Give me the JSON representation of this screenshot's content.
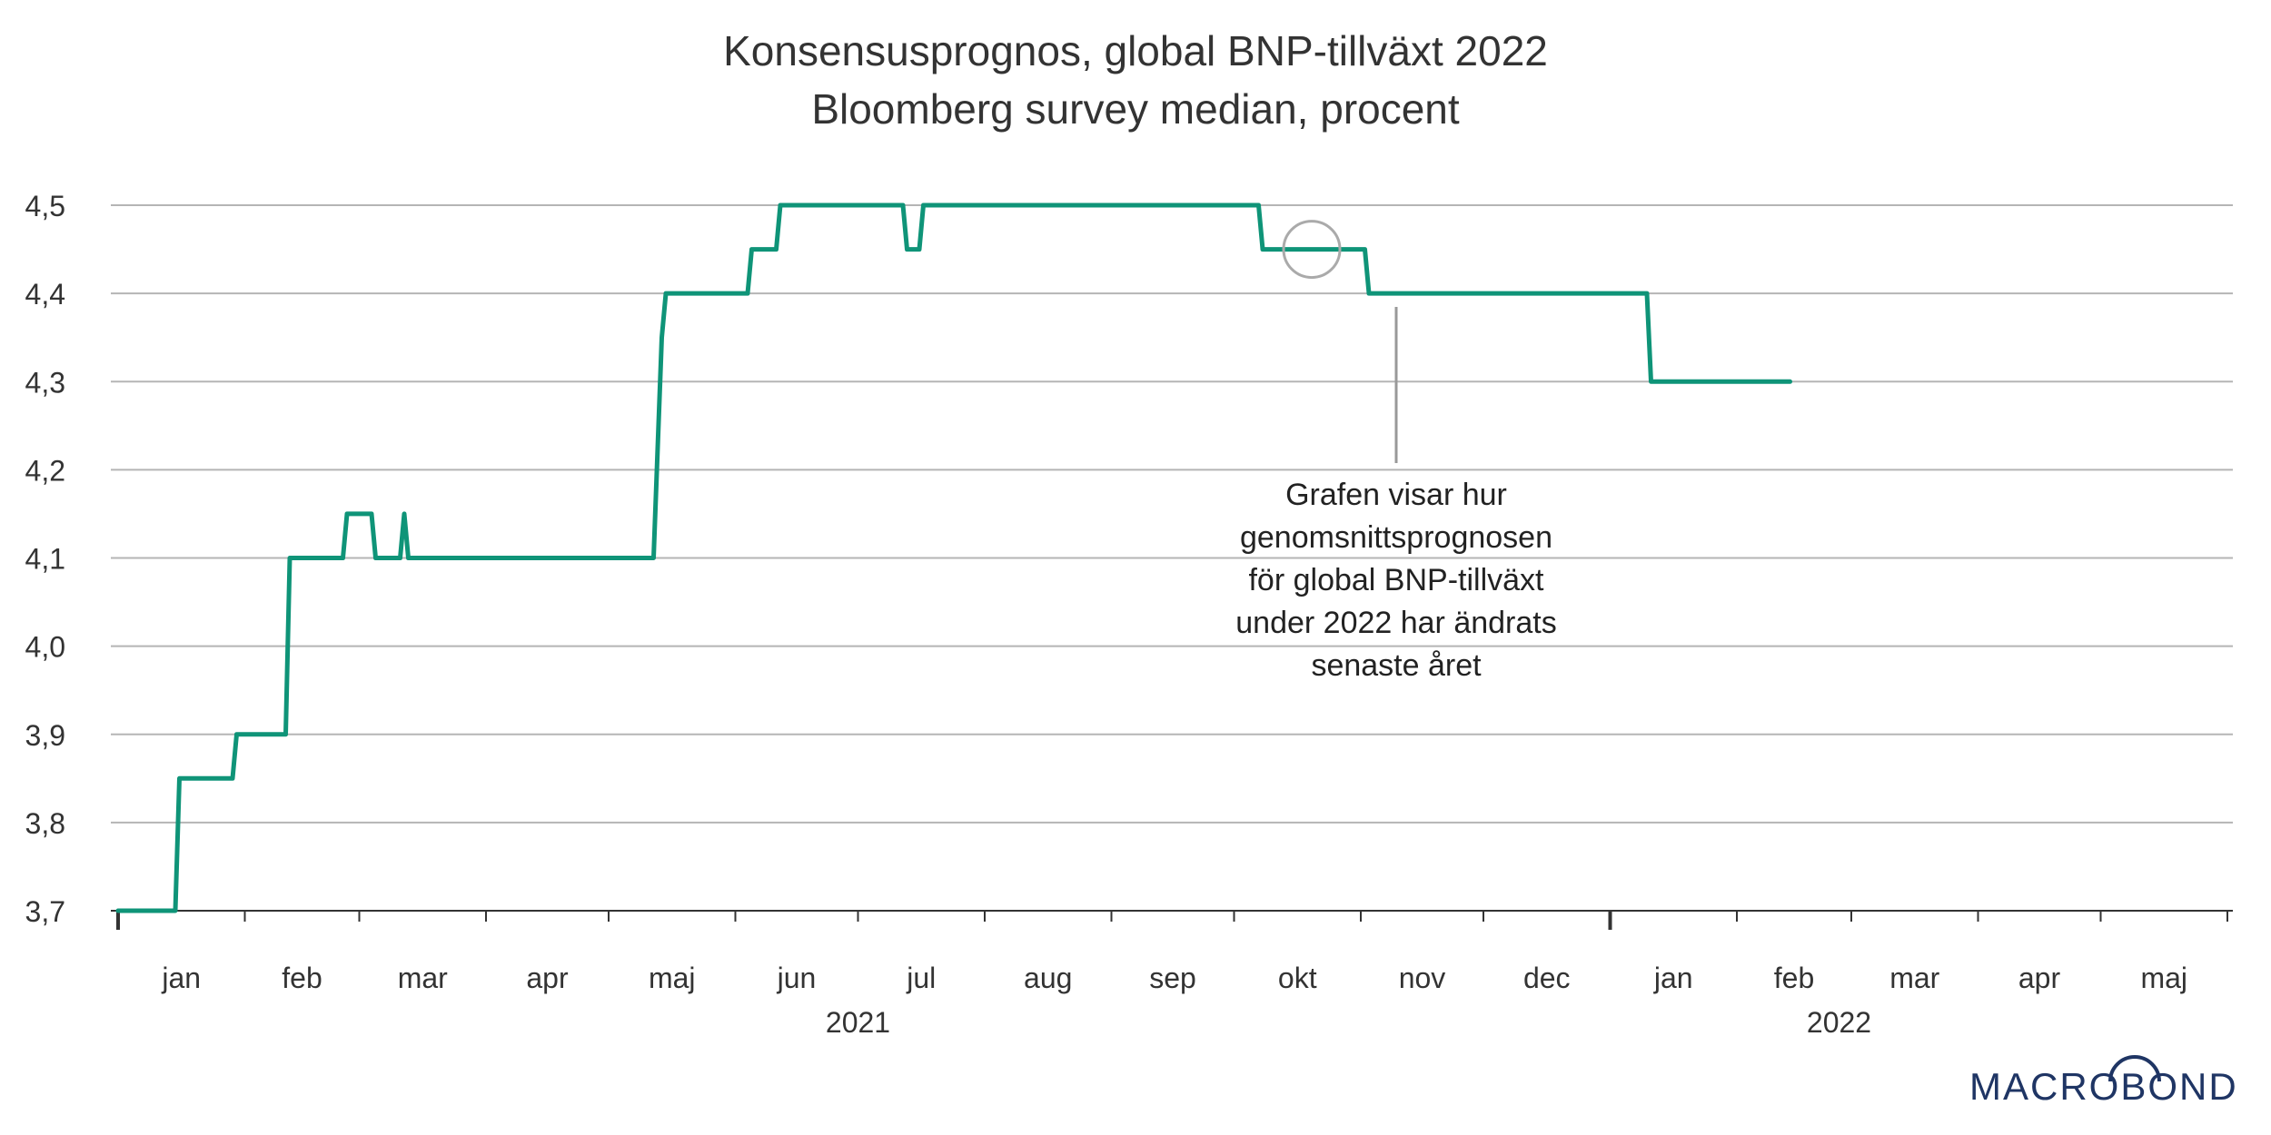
{
  "chart_data": {
    "type": "line",
    "title": "Konsensusprognos, global BNP-tillväxt 2022",
    "subtitle": "Bloomberg survey median, procent",
    "ylim": [
      3.7,
      4.5
    ],
    "y_ticks": [
      "4,5",
      "4,4",
      "4,3",
      "4,2",
      "4,1",
      "4,0",
      "3,9",
      "3,8",
      "3,7"
    ],
    "x_month_labels": [
      "jan",
      "feb",
      "mar",
      "apr",
      "maj",
      "jun",
      "jul",
      "aug",
      "sep",
      "okt",
      "nov",
      "dec",
      "jan",
      "feb",
      "mar",
      "apr",
      "maj"
    ],
    "x_year_labels": [
      "2021",
      "2022"
    ],
    "grid": true,
    "legend": "none",
    "series_color": "#0f9478",
    "annotation": {
      "lines": [
        "Grafen visar hur",
        "genomsnittsprognosen",
        "för global BNP-tillväxt",
        "under 2022 har ändrats",
        "senaste året"
      ],
      "point": {
        "x": "2021-10-20",
        "y": 4.45
      }
    },
    "series": [
      {
        "points": [
          [
            "2021-01-01",
            3.7
          ],
          [
            "2021-01-15",
            3.7
          ],
          [
            "2021-01-16",
            3.85
          ],
          [
            "2021-01-29",
            3.85
          ],
          [
            "2021-01-30",
            3.9
          ],
          [
            "2021-02-11",
            3.9
          ],
          [
            "2021-02-12",
            4.1
          ],
          [
            "2021-02-25",
            4.1
          ],
          [
            "2021-02-26",
            4.15
          ],
          [
            "2021-03-04",
            4.15
          ],
          [
            "2021-03-05",
            4.1
          ],
          [
            "2021-03-11",
            4.1
          ],
          [
            "2021-03-12",
            4.15
          ],
          [
            "2021-03-13",
            4.1
          ],
          [
            "2021-05-12",
            4.1
          ],
          [
            "2021-05-14",
            4.35
          ],
          [
            "2021-05-15",
            4.4
          ],
          [
            "2021-06-04",
            4.4
          ],
          [
            "2021-06-05",
            4.45
          ],
          [
            "2021-06-11",
            4.45
          ],
          [
            "2021-06-12",
            4.5
          ],
          [
            "2021-07-12",
            4.5
          ],
          [
            "2021-07-13",
            4.45
          ],
          [
            "2021-07-16",
            4.45
          ],
          [
            "2021-07-17",
            4.5
          ],
          [
            "2021-10-07",
            4.5
          ],
          [
            "2021-10-08",
            4.45
          ],
          [
            "2021-11-02",
            4.45
          ],
          [
            "2021-11-03",
            4.4
          ],
          [
            "2022-01-10",
            4.4
          ],
          [
            "2022-01-11",
            4.3
          ],
          [
            "2022-02-14",
            4.3
          ]
        ]
      }
    ]
  },
  "branding": {
    "logo_text": "MACROBOND"
  }
}
